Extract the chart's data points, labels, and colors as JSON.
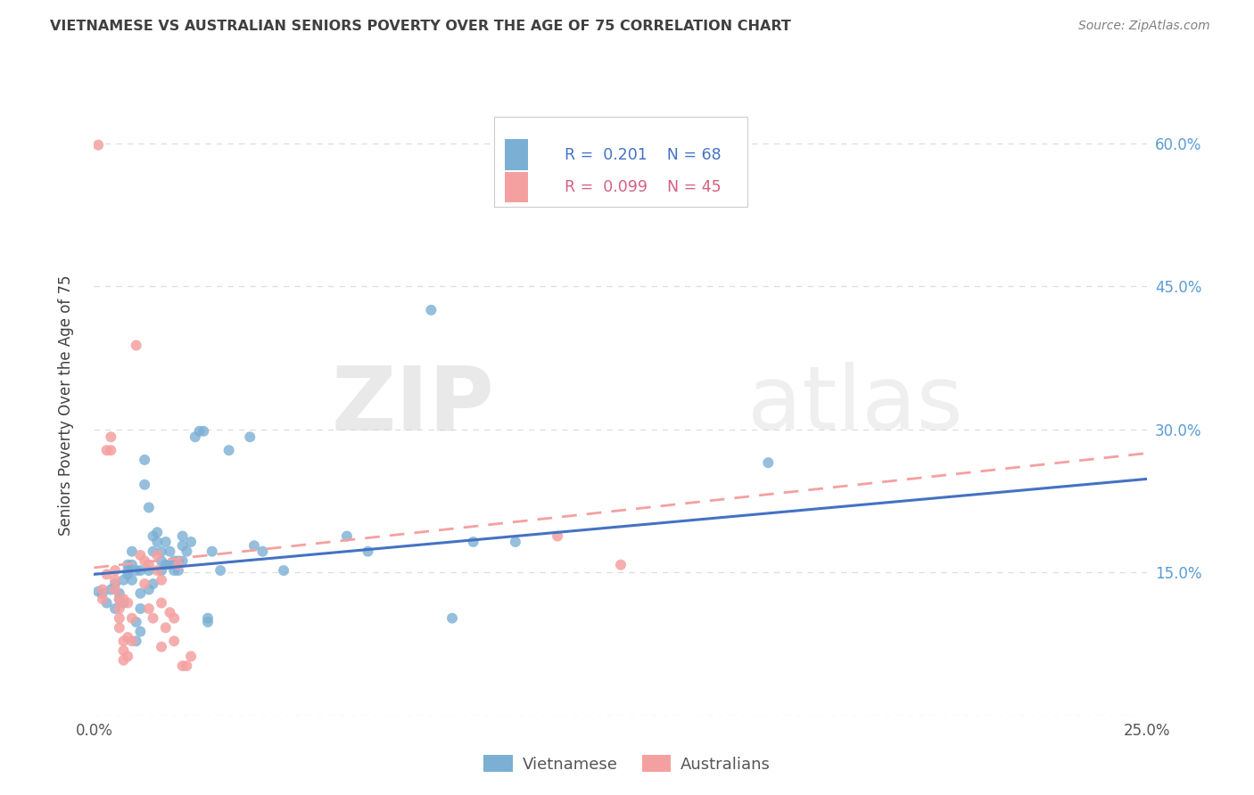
{
  "title": "VIETNAMESE VS AUSTRALIAN SENIORS POVERTY OVER THE AGE OF 75 CORRELATION CHART",
  "source": "Source: ZipAtlas.com",
  "ylabel": "Seniors Poverty Over the Age of 75",
  "xlim": [
    0.0,
    0.25
  ],
  "ylim": [
    0.0,
    0.65
  ],
  "xtick_positions": [
    0.0,
    0.05,
    0.1,
    0.15,
    0.2,
    0.25
  ],
  "xticklabels": [
    "0.0%",
    "",
    "",
    "",
    "",
    "25.0%"
  ],
  "ytick_positions": [
    0.0,
    0.15,
    0.3,
    0.45,
    0.6
  ],
  "yticklabels_right": [
    "",
    "15.0%",
    "30.0%",
    "45.0%",
    "60.0%"
  ],
  "legend_blue_text": "R =  0.201    N = 68",
  "legend_pink_text": "R =  0.099    N = 45",
  "watermark_part1": "ZIP",
  "watermark_part2": "atlas",
  "blue_color": "#7BAFD4",
  "pink_color": "#F4A0A0",
  "blue_line_color": "#4472C4",
  "pink_line_color": "#F4A0A0",
  "blue_line": [
    [
      0.0,
      0.148
    ],
    [
      0.25,
      0.248
    ]
  ],
  "pink_line": [
    [
      0.0,
      0.155
    ],
    [
      0.25,
      0.275
    ]
  ],
  "vietnamese_scatter": [
    [
      0.001,
      0.13
    ],
    [
      0.002,
      0.128
    ],
    [
      0.003,
      0.118
    ],
    [
      0.004,
      0.132
    ],
    [
      0.005,
      0.138
    ],
    [
      0.005,
      0.112
    ],
    [
      0.006,
      0.128
    ],
    [
      0.006,
      0.122
    ],
    [
      0.007,
      0.118
    ],
    [
      0.007,
      0.142
    ],
    [
      0.008,
      0.148
    ],
    [
      0.008,
      0.152
    ],
    [
      0.008,
      0.158
    ],
    [
      0.009,
      0.142
    ],
    [
      0.009,
      0.158
    ],
    [
      0.009,
      0.172
    ],
    [
      0.01,
      0.078
    ],
    [
      0.01,
      0.098
    ],
    [
      0.01,
      0.152
    ],
    [
      0.011,
      0.088
    ],
    [
      0.011,
      0.112
    ],
    [
      0.011,
      0.128
    ],
    [
      0.011,
      0.152
    ],
    [
      0.012,
      0.268
    ],
    [
      0.012,
      0.242
    ],
    [
      0.013,
      0.218
    ],
    [
      0.013,
      0.132
    ],
    [
      0.013,
      0.152
    ],
    [
      0.014,
      0.172
    ],
    [
      0.014,
      0.188
    ],
    [
      0.014,
      0.138
    ],
    [
      0.015,
      0.192
    ],
    [
      0.015,
      0.182
    ],
    [
      0.016,
      0.162
    ],
    [
      0.016,
      0.172
    ],
    [
      0.016,
      0.152
    ],
    [
      0.017,
      0.182
    ],
    [
      0.017,
      0.158
    ],
    [
      0.018,
      0.172
    ],
    [
      0.018,
      0.158
    ],
    [
      0.019,
      0.162
    ],
    [
      0.019,
      0.152
    ],
    [
      0.02,
      0.152
    ],
    [
      0.02,
      0.162
    ],
    [
      0.021,
      0.188
    ],
    [
      0.021,
      0.178
    ],
    [
      0.021,
      0.162
    ],
    [
      0.022,
      0.172
    ],
    [
      0.023,
      0.182
    ],
    [
      0.024,
      0.292
    ],
    [
      0.025,
      0.298
    ],
    [
      0.026,
      0.298
    ],
    [
      0.027,
      0.098
    ],
    [
      0.027,
      0.102
    ],
    [
      0.028,
      0.172
    ],
    [
      0.03,
      0.152
    ],
    [
      0.032,
      0.278
    ],
    [
      0.037,
      0.292
    ],
    [
      0.038,
      0.178
    ],
    [
      0.04,
      0.172
    ],
    [
      0.045,
      0.152
    ],
    [
      0.06,
      0.188
    ],
    [
      0.065,
      0.172
    ],
    [
      0.08,
      0.425
    ],
    [
      0.085,
      0.102
    ],
    [
      0.09,
      0.182
    ],
    [
      0.1,
      0.182
    ],
    [
      0.16,
      0.265
    ]
  ],
  "australian_scatter": [
    [
      0.001,
      0.598
    ],
    [
      0.002,
      0.132
    ],
    [
      0.002,
      0.122
    ],
    [
      0.003,
      0.148
    ],
    [
      0.003,
      0.278
    ],
    [
      0.004,
      0.292
    ],
    [
      0.004,
      0.278
    ],
    [
      0.005,
      0.152
    ],
    [
      0.005,
      0.142
    ],
    [
      0.005,
      0.132
    ],
    [
      0.006,
      0.122
    ],
    [
      0.006,
      0.112
    ],
    [
      0.006,
      0.102
    ],
    [
      0.006,
      0.092
    ],
    [
      0.007,
      0.122
    ],
    [
      0.007,
      0.078
    ],
    [
      0.007,
      0.068
    ],
    [
      0.007,
      0.058
    ],
    [
      0.008,
      0.118
    ],
    [
      0.008,
      0.082
    ],
    [
      0.008,
      0.062
    ],
    [
      0.009,
      0.102
    ],
    [
      0.009,
      0.078
    ],
    [
      0.01,
      0.388
    ],
    [
      0.011,
      0.168
    ],
    [
      0.012,
      0.162
    ],
    [
      0.012,
      0.138
    ],
    [
      0.013,
      0.158
    ],
    [
      0.013,
      0.112
    ],
    [
      0.014,
      0.102
    ],
    [
      0.015,
      0.168
    ],
    [
      0.015,
      0.152
    ],
    [
      0.016,
      0.142
    ],
    [
      0.016,
      0.118
    ],
    [
      0.016,
      0.072
    ],
    [
      0.017,
      0.092
    ],
    [
      0.018,
      0.108
    ],
    [
      0.019,
      0.102
    ],
    [
      0.019,
      0.078
    ],
    [
      0.02,
      0.158
    ],
    [
      0.021,
      0.052
    ],
    [
      0.022,
      0.052
    ],
    [
      0.023,
      0.062
    ],
    [
      0.11,
      0.188
    ],
    [
      0.125,
      0.158
    ]
  ],
  "background_color": "#FFFFFF",
  "grid_color": "#DDDDDD",
  "right_tick_color": "#5B9BD5",
  "title_color": "#404040",
  "source_color": "#808080",
  "ylabel_color": "#404040"
}
